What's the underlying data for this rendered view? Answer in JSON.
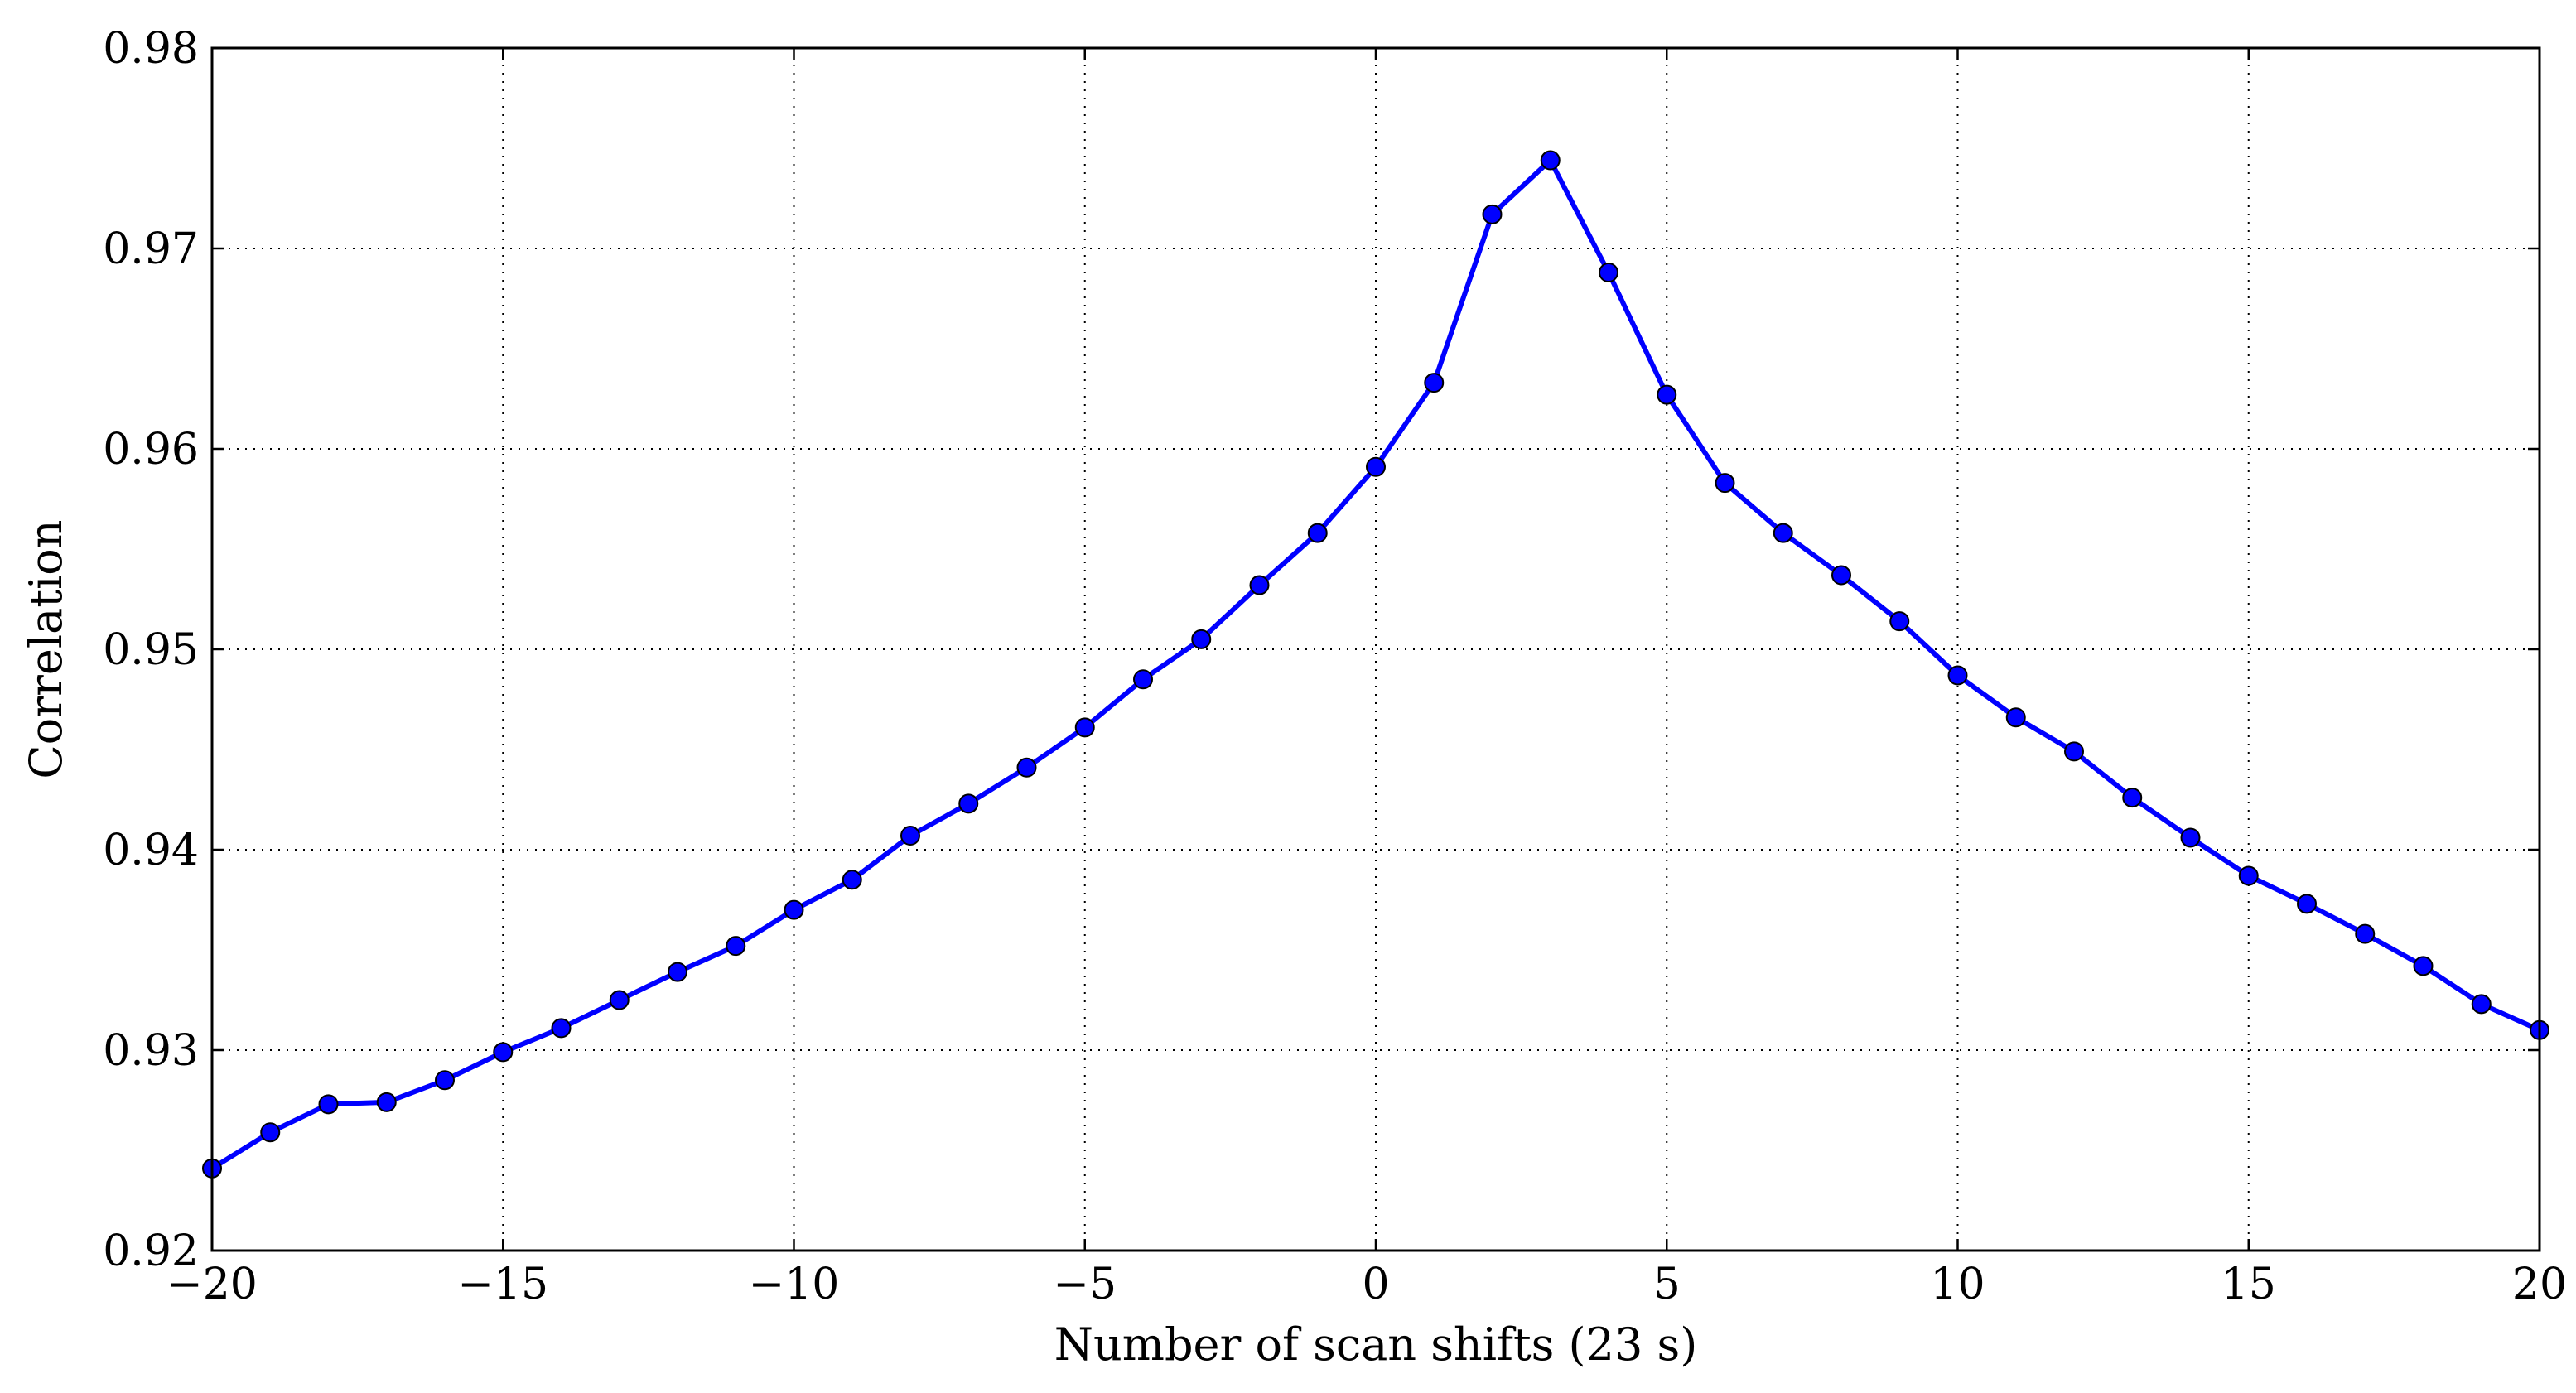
{
  "chart_data": {
    "type": "line",
    "title": "",
    "xlabel": "Number of scan shifts (23 s)",
    "ylabel": "Correlation",
    "xlim": [
      -20,
      20
    ],
    "ylim": [
      0.92,
      0.98
    ],
    "xticks": [
      -20,
      -15,
      -10,
      -5,
      0,
      5,
      10,
      15,
      20
    ],
    "xtick_labels": [
      "−20",
      "−15",
      "−10",
      "−5",
      "0",
      "5",
      "10",
      "15",
      "20"
    ],
    "yticks": [
      0.92,
      0.93,
      0.94,
      0.95,
      0.96,
      0.97,
      0.98
    ],
    "ytick_labels": [
      "0.92",
      "0.93",
      "0.94",
      "0.95",
      "0.96",
      "0.97",
      "0.98"
    ],
    "grid": true,
    "legend": "none",
    "series": [
      {
        "color": "#0000ff",
        "marker": "circle",
        "x": [
          -20,
          -19,
          -18,
          -17,
          -16,
          -15,
          -14,
          -13,
          -12,
          -11,
          -10,
          -9,
          -8,
          -7,
          -6,
          -5,
          -4,
          -3,
          -2,
          -1,
          0,
          1,
          2,
          3,
          4,
          5,
          6,
          7,
          8,
          9,
          10,
          11,
          12,
          13,
          14,
          15,
          16,
          17,
          18,
          19,
          20
        ],
        "y": [
          0.9241,
          0.9259,
          0.9273,
          0.9274,
          0.9285,
          0.9299,
          0.9311,
          0.9325,
          0.9339,
          0.9352,
          0.937,
          0.9385,
          0.9407,
          0.9423,
          0.9441,
          0.9461,
          0.9485,
          0.9505,
          0.9532,
          0.9558,
          0.9591,
          0.9633,
          0.9717,
          0.9744,
          0.9688,
          0.9627,
          0.9583,
          0.9558,
          0.9537,
          0.9514,
          0.9487,
          0.9466,
          0.9449,
          0.9426,
          0.9406,
          0.9387,
          0.9373,
          0.9358,
          0.9342,
          0.9323,
          0.931
        ]
      }
    ]
  }
}
